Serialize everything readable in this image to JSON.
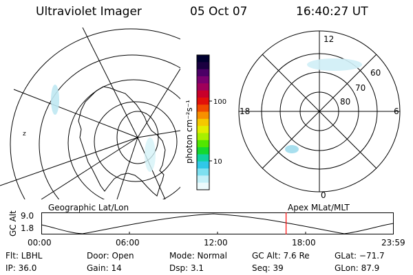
{
  "header": {
    "title": "Ultraviolet Imager",
    "date": "05 Oct 07",
    "time": "16:40:27 UT"
  },
  "colorbar": {
    "unit_label": "photon cm⁻²s⁻¹",
    "ticks": [
      "100",
      "10"
    ],
    "colors": [
      "#000030",
      "#1a0040",
      "#4b0066",
      "#7a006e",
      "#a0005a",
      "#c8002a",
      "#e2100a",
      "#f04a00",
      "#f79000",
      "#f5c800",
      "#e2ee00",
      "#a8f000",
      "#52e600",
      "#14d830",
      "#10d2a0",
      "#30c8e8",
      "#7ee0f0",
      "#c4f0f8",
      "#ecfafc"
    ]
  },
  "left_map": {
    "top_mark": "z"
  },
  "right_map": {
    "mlt_labels": {
      "top": "12",
      "left": "18",
      "right": "6",
      "bottom": "0"
    },
    "lat_labels": [
      "60",
      "70",
      "80"
    ]
  },
  "timeline": {
    "left_label": "Geographic Lat/Lon",
    "right_label": "Apex MLat/MLT",
    "y_title": "GC Alt",
    "y_ticks": [
      "9.0",
      "1.8"
    ],
    "x_ticks": [
      "00:00",
      "06:00",
      "12:00",
      "18:00",
      "23:59"
    ],
    "marker_time": "16:40",
    "accent_color": "#ff0000"
  },
  "info": {
    "row1": {
      "flt": "Flt: LBHL",
      "door": "Door: Open",
      "mode": "Mode: Normal",
      "gcalt": "GC Alt: 7.6 Re",
      "glat": "GLat: −71.7"
    },
    "row2": {
      "ip": "IP: 36.0",
      "gain": "Gain: 14",
      "dsp": "Dsp:   3.1",
      "seq": "Seq: 39",
      "glon": "GLon:  87.9"
    }
  }
}
